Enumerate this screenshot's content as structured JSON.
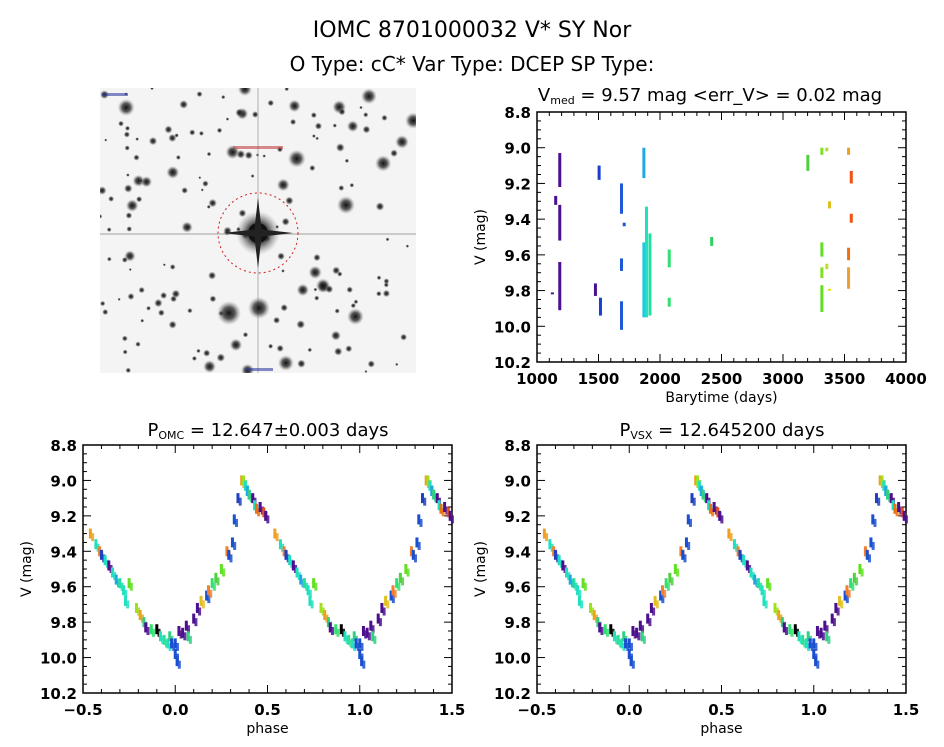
{
  "header": {
    "title": "IOMC 8701000032   V* SY Nor",
    "subtitle": "O Type: cC*  Var Type: DCEP  SP Type:"
  },
  "sky_image": {
    "type": "image",
    "description_visible": false
  },
  "chart_data": [
    {
      "type": "scatter",
      "title_main": "V",
      "title_sub": "med",
      "title_rest": " = 9.57 mag <err_V> = 0.02 mag",
      "xlabel": "Barytime (days)",
      "ylabel": "V (mag)",
      "xlim": [
        1000,
        4000
      ],
      "ylim": [
        8.8,
        10.2
      ],
      "y_inverted": true,
      "xticks": [
        "1000",
        "1500",
        "2000",
        "2500",
        "3000",
        "3500",
        "4000"
      ],
      "yticks": [
        "8.8",
        "9.0",
        "9.2",
        "9.4",
        "9.6",
        "9.8",
        "10.0",
        "10.2"
      ],
      "segments": [
        {
          "x": 1185,
          "v": [
            9.03,
            9.22
          ],
          "color": "#4b0f8f"
        },
        {
          "x": 1185,
          "v": [
            9.32,
            9.52
          ],
          "color": "#4b0f8f"
        },
        {
          "x": 1185,
          "v": [
            9.64,
            9.91
          ],
          "color": "#4b0f8f"
        },
        {
          "x": 1152,
          "v": [
            9.27,
            9.32
          ],
          "color": "#4b0f8f"
        },
        {
          "x": 1125,
          "v": [
            9.81,
            9.82
          ],
          "color": "#4b0f8f"
        },
        {
          "x": 1475,
          "v": [
            9.76,
            9.83
          ],
          "color": "#4b0f8f"
        },
        {
          "x": 1505,
          "v": [
            9.1,
            9.18
          ],
          "color": "#1a3fd0"
        },
        {
          "x": 1516,
          "v": [
            9.84,
            9.94
          ],
          "color": "#1a3fd0"
        },
        {
          "x": 1687,
          "v": [
            9.2,
            9.37
          ],
          "color": "#1e5ad8"
        },
        {
          "x": 1687,
          "v": [
            9.62,
            9.69
          ],
          "color": "#1e5ad8"
        },
        {
          "x": 1687,
          "v": [
            9.86,
            10.02
          ],
          "color": "#1e5ad8"
        },
        {
          "x": 1709,
          "v": [
            9.42,
            9.44
          ],
          "color": "#1e5ad8"
        },
        {
          "x": 1869,
          "v": [
            9.0,
            9.17
          ],
          "color": "#20a8e0"
        },
        {
          "x": 1869,
          "v": [
            9.53,
            9.95
          ],
          "color": "#20c8e0"
        },
        {
          "x": 1890,
          "v": [
            9.33,
            9.95
          ],
          "color": "#20e0c0"
        },
        {
          "x": 1918,
          "v": [
            9.48,
            9.94
          ],
          "color": "#20e0a0"
        },
        {
          "x": 2075,
          "v": [
            9.57,
            9.67
          ],
          "color": "#30e070"
        },
        {
          "x": 2075,
          "v": [
            9.84,
            9.89
          ],
          "color": "#30e070"
        },
        {
          "x": 2420,
          "v": [
            9.5,
            9.55
          ],
          "color": "#30d060"
        },
        {
          "x": 3202,
          "v": [
            9.04,
            9.13
          ],
          "color": "#50d040"
        },
        {
          "x": 3316,
          "v": [
            9.0,
            9.04
          ],
          "color": "#80e020"
        },
        {
          "x": 3316,
          "v": [
            9.53,
            9.61
          ],
          "color": "#60e020"
        },
        {
          "x": 3316,
          "v": [
            9.67,
            9.73
          ],
          "color": "#80e020"
        },
        {
          "x": 3316,
          "v": [
            9.77,
            9.92
          ],
          "color": "#60e020"
        },
        {
          "x": 3356,
          "v": [
            9.0,
            9.02
          ],
          "color": "#b0e020"
        },
        {
          "x": 3356,
          "v": [
            9.65,
            9.68
          ],
          "color": "#c0e020"
        },
        {
          "x": 3378,
          "v": [
            9.3,
            9.34
          ],
          "color": "#e0c020"
        },
        {
          "x": 3378,
          "v": [
            9.79,
            9.8
          ],
          "color": "#e0e020"
        },
        {
          "x": 3533,
          "v": [
            9.0,
            9.04
          ],
          "color": "#f0a020"
        },
        {
          "x": 3533,
          "v": [
            9.56,
            9.63
          ],
          "color": "#f07010"
        },
        {
          "x": 3533,
          "v": [
            9.67,
            9.79
          ],
          "color": "#f0a030"
        },
        {
          "x": 3555,
          "v": [
            9.13,
            9.2
          ],
          "color": "#f05010"
        },
        {
          "x": 3555,
          "v": [
            9.37,
            9.42
          ],
          "color": "#f05010"
        }
      ]
    },
    {
      "type": "scatter",
      "title_main": "P",
      "title_sub": "OMC",
      "title_rest": " = 12.647±0.003 days",
      "xlabel": "phase",
      "ylabel": "V (mag)",
      "xlim": [
        -0.5,
        1.5
      ],
      "ylim": [
        8.8,
        10.2
      ],
      "y_inverted": true,
      "xticks": [
        "-0.5",
        "0.0",
        "0.5",
        "1.0",
        "1.5"
      ],
      "yticks": [
        "8.8",
        "9.0",
        "9.2",
        "9.4",
        "9.6",
        "9.8",
        "10.0",
        "10.2"
      ],
      "points": "phase_points"
    },
    {
      "type": "scatter",
      "title_main": "P",
      "title_sub": "VSX",
      "title_rest": " = 12.645200 days",
      "xlabel": "phase",
      "ylabel": "V (mag)",
      "xlim": [
        -0.5,
        1.5
      ],
      "ylim": [
        8.8,
        10.2
      ],
      "y_inverted": true,
      "xticks": [
        "-0.5",
        "0.0",
        "0.5",
        "1.0",
        "1.5"
      ],
      "yticks": [
        "8.8",
        "9.0",
        "9.2",
        "9.4",
        "9.6",
        "9.8",
        "10.0",
        "10.2"
      ],
      "points": "phase_points"
    }
  ],
  "phase_points": [
    [
      0.0,
      9.98,
      "#1a50d0"
    ],
    [
      0.0,
      9.92,
      "#1a50d0"
    ],
    [
      0.01,
      10.02,
      "#1a50d0"
    ],
    [
      0.02,
      9.85,
      "#4b0f8f"
    ],
    [
      0.04,
      9.86,
      "#4b0f8f"
    ],
    [
      0.06,
      9.82,
      "#4b0f8f"
    ],
    [
      0.07,
      9.88,
      "#30d080"
    ],
    [
      0.1,
      9.78,
      "#4b0f8f"
    ],
    [
      0.12,
      9.72,
      "#4b0f8f"
    ],
    [
      0.14,
      9.68,
      "#e0c020"
    ],
    [
      0.17,
      9.65,
      "#1a50d0"
    ],
    [
      0.18,
      9.62,
      "#f08030"
    ],
    [
      0.2,
      9.58,
      "#30e070"
    ],
    [
      0.22,
      9.55,
      "#50d040"
    ],
    [
      0.25,
      9.5,
      "#60e020"
    ],
    [
      0.28,
      9.4,
      "#f08030"
    ],
    [
      0.29,
      9.42,
      "#1a50d0"
    ],
    [
      0.31,
      9.35,
      "#1a50d0"
    ],
    [
      0.32,
      9.22,
      "#1a50d0"
    ],
    [
      0.34,
      9.1,
      "#2040c0"
    ],
    [
      0.36,
      9.0,
      "#f0a020"
    ],
    [
      0.37,
      9.0,
      "#a0e020"
    ],
    [
      0.38,
      9.03,
      "#20e0c0"
    ],
    [
      0.39,
      9.06,
      "#20a8e0"
    ],
    [
      0.4,
      9.08,
      "#30d080"
    ],
    [
      0.42,
      9.1,
      "#4b0f8f"
    ],
    [
      0.43,
      9.14,
      "#20e0c0"
    ],
    [
      0.44,
      9.16,
      "#f07010"
    ],
    [
      0.46,
      9.15,
      "#4b0f8f"
    ],
    [
      0.48,
      9.18,
      "#f05010"
    ],
    [
      0.49,
      9.2,
      "#4b0f8f"
    ],
    [
      0.54,
      9.3,
      "#f0a020"
    ],
    [
      0.57,
      9.36,
      "#20e0c0"
    ],
    [
      0.59,
      9.4,
      "#f08030"
    ],
    [
      0.6,
      9.42,
      "#2040c0"
    ],
    [
      0.62,
      9.45,
      "#20e0c0"
    ],
    [
      0.64,
      9.48,
      "#4b0f8f"
    ],
    [
      0.66,
      9.52,
      "#20e0c0"
    ],
    [
      0.68,
      9.56,
      "#20a8e0"
    ],
    [
      0.7,
      9.58,
      "#20e0a0"
    ],
    [
      0.72,
      9.62,
      "#20e0c0"
    ],
    [
      0.73,
      9.68,
      "#20e0c0"
    ],
    [
      0.75,
      9.58,
      "#60e020"
    ],
    [
      0.79,
      9.72,
      "#a0e020"
    ],
    [
      0.81,
      9.76,
      "#f0a020"
    ],
    [
      0.83,
      9.8,
      "#30d080"
    ],
    [
      0.84,
      9.83,
      "#4b0f8f"
    ],
    [
      0.87,
      9.84,
      "#30e070"
    ],
    [
      0.9,
      9.84,
      "#000000"
    ],
    [
      0.92,
      9.88,
      "#20e0c0"
    ],
    [
      0.94,
      9.9,
      "#30e090"
    ],
    [
      0.96,
      9.92,
      "#20e0c0"
    ],
    [
      0.97,
      9.88,
      "#30d080"
    ],
    [
      0.98,
      9.92,
      "#1a50d0"
    ]
  ]
}
